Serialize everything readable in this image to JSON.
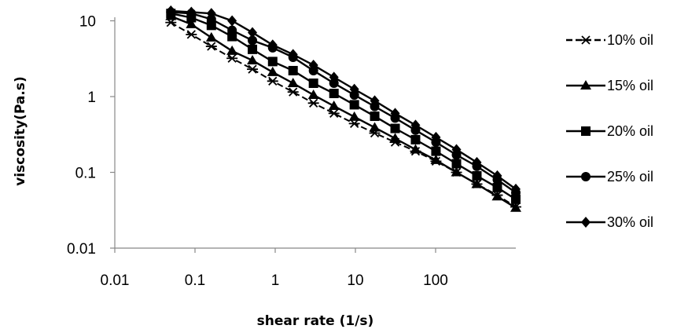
{
  "chart_data": {
    "type": "line",
    "title": "",
    "xlabel": "shear rate (1/s)",
    "ylabel": "viscosity(Pa.s)",
    "x_scale": "log",
    "y_scale": "log",
    "xlim": [
      0.01,
      1000
    ],
    "ylim": [
      0.01,
      10
    ],
    "x_ticks": [
      "0.01",
      "0.1",
      "1",
      "10",
      "100"
    ],
    "y_ticks": [
      "0.01",
      "0.1",
      "1",
      "10"
    ],
    "grid": false,
    "legend": "right",
    "x": [
      0.05,
      0.09,
      0.16,
      0.29,
      0.52,
      0.93,
      1.67,
      3.0,
      5.4,
      9.7,
      17.4,
      31.3,
      56.2,
      101,
      182,
      327,
      588,
      1000
    ],
    "series": [
      {
        "name": "10% oil",
        "marker": "asterisk",
        "values": [
          9.5,
          6.6,
          4.6,
          3.2,
          2.3,
          1.6,
          1.15,
          0.82,
          0.6,
          0.44,
          0.33,
          0.25,
          0.19,
          0.14,
          0.1,
          0.07,
          0.05,
          0.035
        ]
      },
      {
        "name": "15% oil",
        "marker": "triangle",
        "values": [
          11.5,
          9.0,
          6.0,
          4.0,
          3.0,
          2.1,
          1.5,
          1.05,
          0.75,
          0.54,
          0.39,
          0.28,
          0.2,
          0.145,
          0.1,
          0.07,
          0.048,
          0.034
        ]
      },
      {
        "name": "20% oil",
        "marker": "square",
        "values": [
          12.5,
          11.0,
          8.7,
          6.2,
          4.2,
          2.9,
          2.2,
          1.5,
          1.1,
          0.78,
          0.55,
          0.38,
          0.27,
          0.19,
          0.13,
          0.09,
          0.063,
          0.044
        ]
      },
      {
        "name": "25% oil",
        "marker": "circle",
        "values": [
          13.0,
          12.5,
          10.5,
          7.5,
          5.5,
          4.4,
          3.3,
          2.2,
          1.5,
          1.05,
          0.74,
          0.52,
          0.36,
          0.25,
          0.17,
          0.12,
          0.08,
          0.054
        ]
      },
      {
        "name": "30% oil",
        "marker": "diamond",
        "values": [
          13.5,
          13.0,
          12.5,
          10.0,
          7.0,
          4.8,
          3.6,
          2.6,
          1.8,
          1.25,
          0.88,
          0.6,
          0.42,
          0.29,
          0.2,
          0.135,
          0.09,
          0.06
        ]
      }
    ]
  }
}
